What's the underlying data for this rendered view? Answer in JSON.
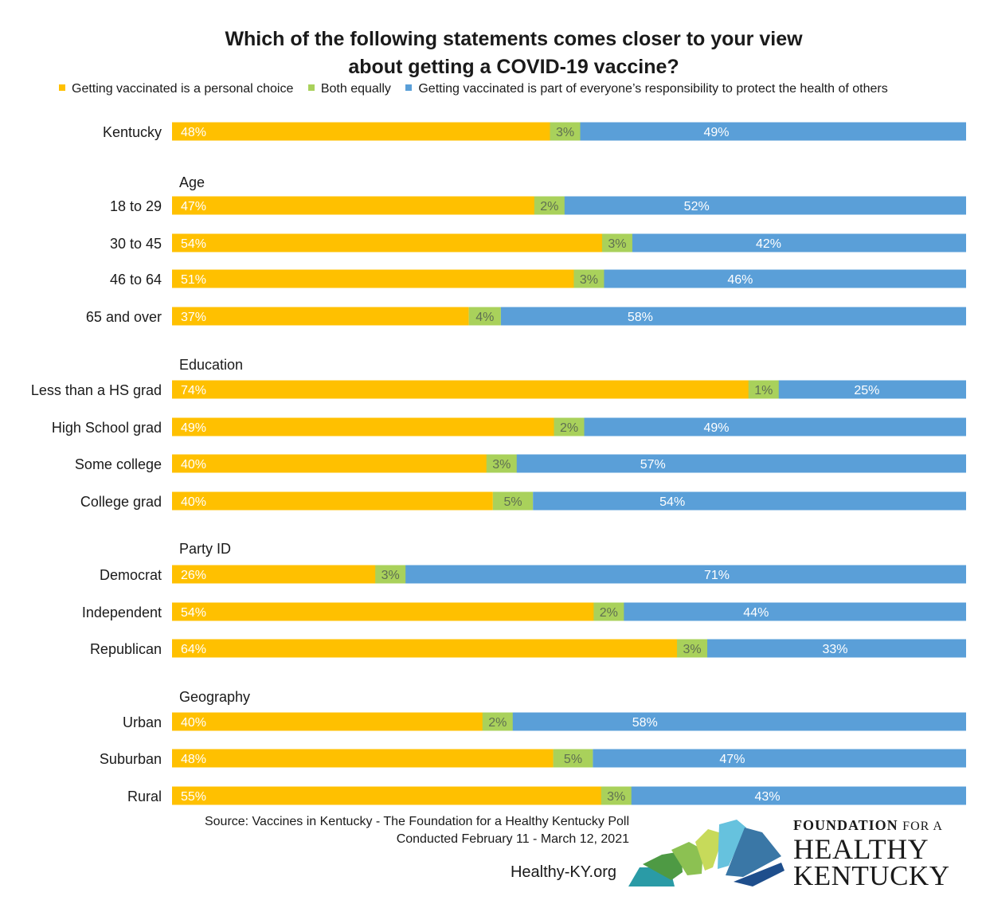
{
  "title_lines": [
    "Which of the following statements comes closer to your view",
    "about getting a COVID-19 vaccine?"
  ],
  "legend": [
    {
      "label": "Getting vaccinated is a personal choice",
      "color": "#FFC000"
    },
    {
      "label": "Both equally",
      "color": "#A9D15B"
    },
    {
      "label": "Getting vaccinated is part of everyone’s responsibility to protect the health of others",
      "color": "#5A9FD8"
    }
  ],
  "source_lines": [
    "Source: Vaccines in Kentucky - The Foundation for a Healthy Kentucky Poll",
    "Conducted February 11 - March 12, 2021"
  ],
  "website": "Healthy-KY.org",
  "logo": {
    "line1_bold": "FOUNDATION",
    "line1_rest": "FOR A",
    "line2": "HEALTHY",
    "line3": "KENTUCKY"
  },
  "chart_data": {
    "type": "bar",
    "orientation": "horizontal",
    "stacked": true,
    "percent": true,
    "series": [
      {
        "name": "Getting vaccinated is a personal choice",
        "color": "#FFC000"
      },
      {
        "name": "Both equally",
        "color": "#A9D15B"
      },
      {
        "name": "Getting vaccinated is part of everyone’s responsibility to protect the health of others",
        "color": "#5A9FD8"
      }
    ],
    "groups": [
      {
        "heading": "",
        "rows": [
          {
            "category": "Kentucky",
            "values": [
              48,
              3,
              49
            ]
          }
        ]
      },
      {
        "heading": "Age",
        "rows": [
          {
            "category": "18 to 29",
            "values": [
              47,
              2,
              52
            ]
          },
          {
            "category": "30 to 45",
            "values": [
              54,
              3,
              42
            ]
          },
          {
            "category": "46 to 64",
            "values": [
              51,
              3,
              46
            ]
          },
          {
            "category": "65 and over",
            "values": [
              37,
              4,
              58
            ]
          }
        ]
      },
      {
        "heading": "Education",
        "rows": [
          {
            "category": "Less than a HS grad",
            "values": [
              74,
              1,
              25
            ]
          },
          {
            "category": "High School grad",
            "values": [
              49,
              2,
              49
            ]
          },
          {
            "category": "Some college",
            "values": [
              40,
              3,
              57
            ]
          },
          {
            "category": "College grad",
            "values": [
              40,
              5,
              54
            ]
          }
        ]
      },
      {
        "heading": "Party ID",
        "rows": [
          {
            "category": "Democrat",
            "values": [
              26,
              3,
              71
            ]
          },
          {
            "category": "Independent",
            "values": [
              54,
              2,
              44
            ]
          },
          {
            "category": "Republican",
            "values": [
              64,
              3,
              33
            ]
          }
        ]
      },
      {
        "heading": "Geography",
        "rows": [
          {
            "category": "Urban",
            "values": [
              40,
              2,
              58
            ]
          },
          {
            "category": "Suburban",
            "values": [
              48,
              5,
              47
            ]
          },
          {
            "category": "Rural",
            "values": [
              55,
              3,
              43
            ]
          }
        ]
      }
    ]
  }
}
